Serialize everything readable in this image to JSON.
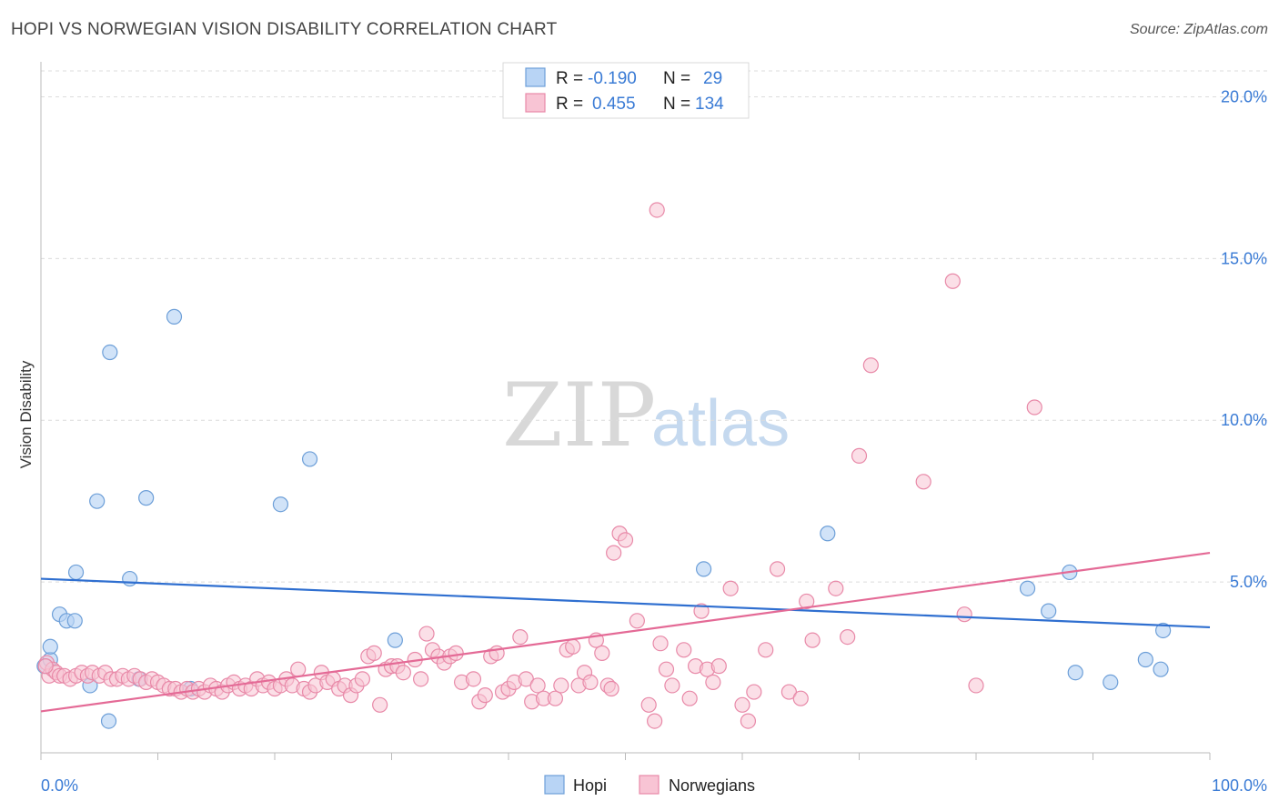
{
  "header": {
    "title": "HOPI VS NORWEGIAN VISION DISABILITY CORRELATION CHART",
    "source": "Source: ZipAtlas.com"
  },
  "watermark": {
    "zip": "ZIP",
    "atlas": "atlas"
  },
  "legend": {
    "rows": [
      {
        "r_label": "R =",
        "r_value": "-0.190",
        "n_label": "N =",
        "n_value": "29"
      },
      {
        "r_label": "R =",
        "r_value": "0.455",
        "n_label": "N =",
        "n_value": "134"
      }
    ]
  },
  "bottom_legend": {
    "hopi": "Hopi",
    "norwegians": "Norwegians"
  },
  "colors": {
    "hopi_fill": "#b8d4f5",
    "hopi_stroke": "#6d9fd8",
    "hopi_line": "#2f6fd0",
    "nor_fill": "#f8c4d4",
    "nor_stroke": "#e889a8",
    "nor_line": "#e46a96",
    "tick_label": "#3a7bd5"
  },
  "chart_data": {
    "type": "scatter",
    "title": "HOPI VS NORWEGIAN VISION DISABILITY CORRELATION CHART",
    "xlabel": "",
    "ylabel": "Vision Disability",
    "xlim": [
      0,
      100
    ],
    "ylim": [
      0,
      20.8
    ],
    "x_tick_labels": [
      "0.0%",
      "100.0%"
    ],
    "y_ticks": [
      5,
      10,
      15,
      20
    ],
    "y_tick_labels": [
      "5.0%",
      "10.0%",
      "15.0%",
      "20.0%"
    ],
    "grid": true,
    "series": [
      {
        "name": "Hopi",
        "r": -0.19,
        "n": 29,
        "trend": [
          [
            0,
            5.1
          ],
          [
            100,
            3.6
          ]
        ],
        "points": [
          [
            0.3,
            2.4
          ],
          [
            0.8,
            2.6
          ],
          [
            0.8,
            3.0
          ],
          [
            1.6,
            4.0
          ],
          [
            2.2,
            3.8
          ],
          [
            2.9,
            3.8
          ],
          [
            3.0,
            5.3
          ],
          [
            4.2,
            1.8
          ],
          [
            4.8,
            7.5
          ],
          [
            5.8,
            0.7
          ],
          [
            5.9,
            12.1
          ],
          [
            7.6,
            5.1
          ],
          [
            8.4,
            2.0
          ],
          [
            9.0,
            7.6
          ],
          [
            11.4,
            13.2
          ],
          [
            12.8,
            1.7
          ],
          [
            20.5,
            7.4
          ],
          [
            23.0,
            8.8
          ],
          [
            30.3,
            3.2
          ],
          [
            56.7,
            5.4
          ],
          [
            67.3,
            6.5
          ],
          [
            84.4,
            4.8
          ],
          [
            86.2,
            4.1
          ],
          [
            88.0,
            5.3
          ],
          [
            88.5,
            2.2
          ],
          [
            91.5,
            1.9
          ],
          [
            94.5,
            2.6
          ],
          [
            95.8,
            2.3
          ],
          [
            96.0,
            3.5
          ]
        ]
      },
      {
        "name": "Norwegians",
        "r": 0.455,
        "n": 134,
        "trend": [
          [
            0,
            1.0
          ],
          [
            100,
            5.9
          ]
        ],
        "points": [
          [
            0.5,
            2.5
          ],
          [
            0.7,
            2.1
          ],
          [
            1.0,
            2.3
          ],
          [
            1.3,
            2.2
          ],
          [
            1.6,
            2.1
          ],
          [
            2.0,
            2.1
          ],
          [
            2.5,
            2.0
          ],
          [
            3.0,
            2.1
          ],
          [
            3.5,
            2.2
          ],
          [
            4.0,
            2.1
          ],
          [
            4.4,
            2.2
          ],
          [
            5.0,
            2.1
          ],
          [
            5.5,
            2.2
          ],
          [
            6.0,
            2.0
          ],
          [
            6.5,
            2.0
          ],
          [
            7.0,
            2.1
          ],
          [
            7.5,
            2.0
          ],
          [
            8.0,
            2.1
          ],
          [
            8.5,
            2.0
          ],
          [
            9.0,
            1.9
          ],
          [
            9.5,
            2.0
          ],
          [
            10.0,
            1.9
          ],
          [
            10.5,
            1.8
          ],
          [
            11.0,
            1.7
          ],
          [
            11.5,
            1.7
          ],
          [
            12.0,
            1.6
          ],
          [
            12.5,
            1.7
          ],
          [
            13.0,
            1.6
          ],
          [
            13.5,
            1.7
          ],
          [
            14.0,
            1.6
          ],
          [
            14.5,
            1.8
          ],
          [
            15.0,
            1.7
          ],
          [
            15.5,
            1.6
          ],
          [
            16.0,
            1.8
          ],
          [
            16.5,
            1.9
          ],
          [
            17.0,
            1.7
          ],
          [
            17.5,
            1.8
          ],
          [
            18.0,
            1.7
          ],
          [
            18.5,
            2.0
          ],
          [
            19.0,
            1.8
          ],
          [
            19.5,
            1.9
          ],
          [
            20.0,
            1.7
          ],
          [
            20.5,
            1.8
          ],
          [
            21.0,
            2.0
          ],
          [
            21.5,
            1.8
          ],
          [
            22.0,
            2.3
          ],
          [
            22.5,
            1.7
          ],
          [
            23.0,
            1.6
          ],
          [
            23.5,
            1.8
          ],
          [
            24.0,
            2.2
          ],
          [
            24.5,
            1.9
          ],
          [
            25.0,
            2.0
          ],
          [
            25.5,
            1.7
          ],
          [
            26.0,
            1.8
          ],
          [
            26.5,
            1.5
          ],
          [
            27.0,
            1.8
          ],
          [
            27.5,
            2.0
          ],
          [
            28.0,
            2.7
          ],
          [
            28.5,
            2.8
          ],
          [
            29.0,
            1.2
          ],
          [
            29.5,
            2.3
          ],
          [
            30.0,
            2.4
          ],
          [
            30.5,
            2.4
          ],
          [
            31.0,
            2.2
          ],
          [
            32.0,
            2.6
          ],
          [
            32.5,
            2.0
          ],
          [
            33.0,
            3.4
          ],
          [
            33.5,
            2.9
          ],
          [
            34.0,
            2.7
          ],
          [
            34.5,
            2.5
          ],
          [
            35.0,
            2.7
          ],
          [
            35.5,
            2.8
          ],
          [
            36.0,
            1.9
          ],
          [
            37.0,
            2.0
          ],
          [
            37.5,
            1.3
          ],
          [
            38.0,
            1.5
          ],
          [
            38.5,
            2.7
          ],
          [
            39.0,
            2.8
          ],
          [
            39.5,
            1.6
          ],
          [
            40.0,
            1.7
          ],
          [
            40.5,
            1.9
          ],
          [
            41.0,
            3.3
          ],
          [
            41.5,
            2.0
          ],
          [
            42.0,
            1.3
          ],
          [
            42.5,
            1.8
          ],
          [
            43.0,
            1.4
          ],
          [
            44.0,
            1.4
          ],
          [
            44.5,
            1.8
          ],
          [
            45.0,
            2.9
          ],
          [
            45.5,
            3.0
          ],
          [
            46.0,
            1.8
          ],
          [
            46.5,
            2.2
          ],
          [
            47.0,
            1.9
          ],
          [
            47.5,
            3.2
          ],
          [
            48.0,
            2.8
          ],
          [
            48.5,
            1.8
          ],
          [
            48.8,
            1.7
          ],
          [
            49.0,
            5.9
          ],
          [
            49.5,
            6.5
          ],
          [
            50.0,
            6.3
          ],
          [
            51.0,
            3.8
          ],
          [
            52.0,
            1.2
          ],
          [
            52.5,
            0.7
          ],
          [
            53.0,
            3.1
          ],
          [
            53.5,
            2.3
          ],
          [
            54.0,
            1.8
          ],
          [
            55.0,
            2.9
          ],
          [
            55.5,
            1.4
          ],
          [
            56.0,
            2.4
          ],
          [
            57.0,
            2.3
          ],
          [
            57.5,
            1.9
          ],
          [
            58.0,
            2.4
          ],
          [
            59.0,
            4.8
          ],
          [
            60.0,
            1.2
          ],
          [
            60.5,
            0.7
          ],
          [
            61.0,
            1.6
          ],
          [
            62.0,
            2.9
          ],
          [
            63.0,
            5.4
          ],
          [
            64.0,
            1.6
          ],
          [
            65.0,
            1.4
          ],
          [
            66.0,
            3.2
          ],
          [
            68.0,
            4.8
          ],
          [
            69.0,
            3.3
          ],
          [
            70.0,
            8.9
          ],
          [
            71.0,
            11.7
          ],
          [
            75.5,
            8.1
          ],
          [
            78.0,
            14.3
          ],
          [
            79.0,
            4.0
          ],
          [
            80.0,
            1.8
          ],
          [
            85.0,
            10.4
          ],
          [
            52.7,
            16.5
          ],
          [
            0.4,
            2.4
          ],
          [
            56.5,
            4.1
          ],
          [
            65.5,
            4.4
          ]
        ]
      }
    ]
  }
}
